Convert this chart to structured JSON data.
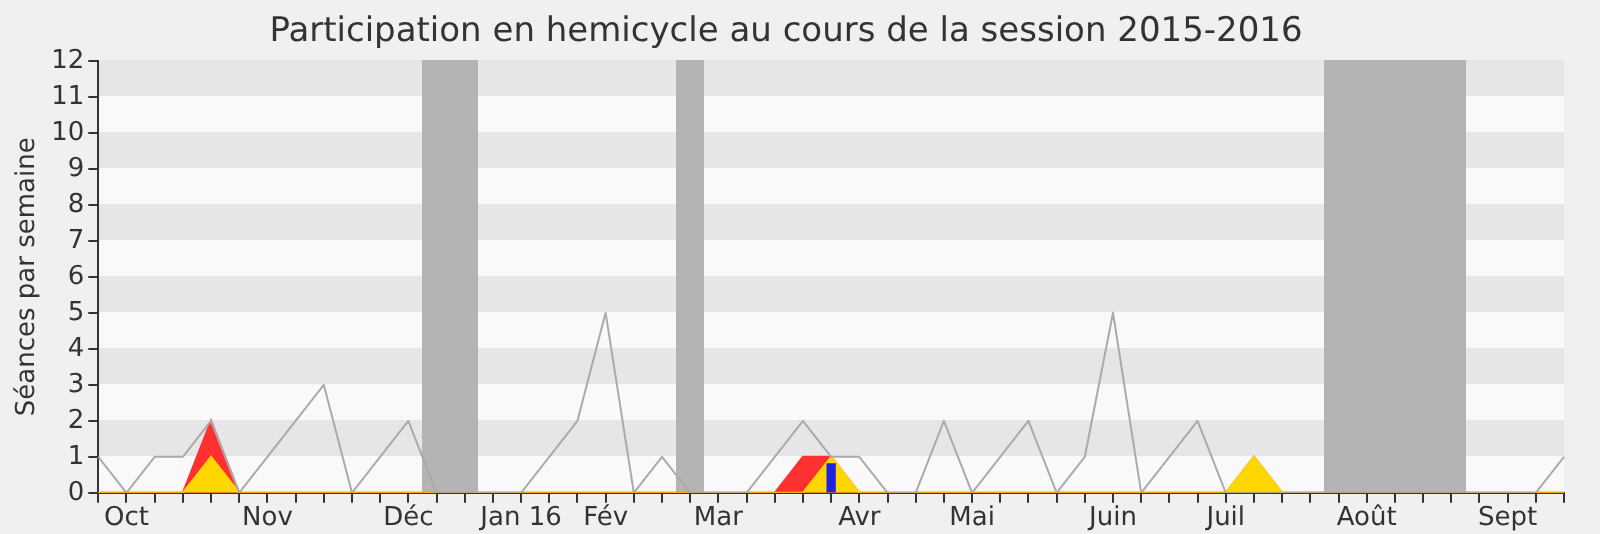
{
  "chart_data": {
    "type": "line",
    "title": "Participation en hemicycle au cours de la session 2015-2016",
    "ylabel": "Séances par semaine",
    "categories": [
      null,
      "Oct",
      null,
      null,
      null,
      null,
      "Nov",
      null,
      null,
      null,
      null,
      "Déc",
      null,
      null,
      null,
      "Jan 16",
      null,
      null,
      "Fév",
      null,
      null,
      null,
      "Mar",
      null,
      null,
      null,
      null,
      "Avr",
      null,
      null,
      null,
      "Mai",
      null,
      null,
      null,
      null,
      "Juin",
      null,
      null,
      null,
      "Juil",
      null,
      null,
      null,
      null,
      "Août",
      null,
      null,
      null,
      null,
      "Sept",
      null,
      null
    ],
    "series": [
      {
        "type": "area",
        "color": "#ff3030",
        "values": [
          0,
          0,
          0,
          0,
          2,
          0,
          0,
          0,
          0,
          0,
          0,
          0,
          0,
          0,
          0,
          0,
          0,
          0,
          0,
          0,
          0,
          0,
          0,
          0,
          0,
          1,
          1,
          0,
          0,
          0,
          0,
          0,
          0,
          0,
          0,
          0,
          0,
          0,
          0,
          0,
          0,
          1,
          0,
          0,
          0,
          0,
          0,
          0,
          0,
          0,
          0,
          0,
          0
        ]
      },
      {
        "type": "area",
        "color": "#ffd700",
        "values": [
          0,
          0,
          0,
          0,
          1,
          0,
          0,
          0,
          0,
          0,
          0,
          0,
          0,
          0,
          0,
          0,
          0,
          0,
          0,
          0,
          0,
          0,
          0,
          0,
          0,
          0,
          1,
          0,
          0,
          0,
          0,
          0,
          0,
          0,
          0,
          0,
          0,
          0,
          0,
          0,
          0,
          1,
          0,
          0,
          0,
          0,
          0,
          0,
          0,
          0,
          0,
          0,
          0
        ]
      },
      {
        "type": "bar",
        "color": "#2020e0",
        "values": [
          null,
          null,
          null,
          null,
          null,
          null,
          null,
          null,
          null,
          null,
          null,
          null,
          null,
          null,
          null,
          null,
          null,
          null,
          null,
          null,
          null,
          null,
          null,
          null,
          null,
          null,
          0.8,
          null,
          null,
          null,
          null,
          null,
          null,
          null,
          null,
          null,
          null,
          null,
          null,
          null,
          null,
          null,
          null,
          null,
          null,
          null,
          null,
          null,
          null,
          null,
          null,
          null,
          null
        ]
      },
      {
        "color": "#aaaaaa",
        "values": [
          1,
          0,
          1,
          1,
          2,
          0,
          1,
          2,
          3,
          0,
          1,
          2,
          0,
          0,
          0,
          0,
          1,
          2,
          5,
          0,
          1,
          0,
          0,
          0,
          1,
          2,
          1,
          1,
          0,
          0,
          2,
          0,
          1,
          2,
          0,
          1,
          5,
          0,
          1,
          2,
          0,
          0,
          0,
          0,
          0,
          0,
          0,
          0,
          0,
          0,
          0,
          0,
          1
        ]
      }
    ],
    "ylim": [
      0,
      12
    ],
    "yticks": [
      0,
      1,
      2,
      3,
      4,
      5,
      6,
      7,
      8,
      9,
      10,
      11,
      12
    ],
    "legend": false,
    "marker": "none"
  }
}
